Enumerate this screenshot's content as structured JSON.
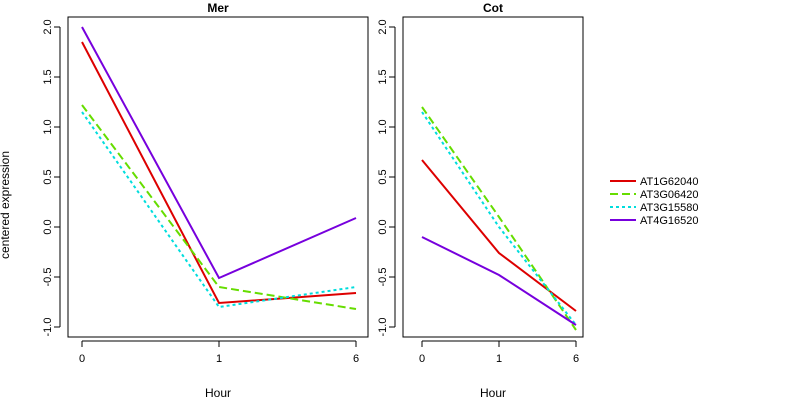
{
  "ylabel": "centered expression",
  "legend": {
    "placement": "right",
    "entries": [
      "AT1G62040",
      "AT3G06420",
      "AT3G15580",
      "AT4G16520"
    ]
  },
  "chart_data": [
    {
      "type": "line",
      "title": "Mer",
      "xlabel": "Hour",
      "ylabel": "centered expression",
      "x": [
        "0",
        "1",
        "6"
      ],
      "ylim": [
        -1.1,
        2.1
      ],
      "yticks": [
        "-1.0",
        "-0.5",
        "0.0",
        "0.5",
        "1.0",
        "1.5",
        "2.0"
      ],
      "series": [
        {
          "name": "AT1G62040",
          "color": "#dd0000",
          "dash": "solid",
          "values": [
            1.85,
            -0.76,
            -0.66
          ]
        },
        {
          "name": "AT3G06420",
          "color": "#66dd00",
          "dash": "long-dash",
          "values": [
            1.22,
            -0.6,
            -0.82
          ]
        },
        {
          "name": "AT3G15580",
          "color": "#00dddd",
          "dash": "dotted",
          "values": [
            1.15,
            -0.8,
            -0.6
          ]
        },
        {
          "name": "AT4G16520",
          "color": "#7700dd",
          "dash": "solid",
          "values": [
            2.0,
            -0.51,
            0.09
          ]
        }
      ]
    },
    {
      "type": "line",
      "title": "Cot",
      "xlabel": "Hour",
      "ylabel": "",
      "x": [
        "0",
        "1",
        "6"
      ],
      "ylim": [
        -1.1,
        2.1
      ],
      "yticks": [
        "-1.0",
        "-0.5",
        "0.0",
        "0.5",
        "1.0",
        "1.5",
        "2.0"
      ],
      "series": [
        {
          "name": "AT1G62040",
          "color": "#dd0000",
          "dash": "solid",
          "values": [
            0.67,
            -0.26,
            -0.84
          ]
        },
        {
          "name": "AT3G06420",
          "color": "#66dd00",
          "dash": "long-dash",
          "values": [
            1.2,
            0.1,
            -1.03
          ]
        },
        {
          "name": "AT3G15580",
          "color": "#00dddd",
          "dash": "dotted",
          "values": [
            1.15,
            0.0,
            -0.98
          ]
        },
        {
          "name": "AT4G16520",
          "color": "#7700dd",
          "dash": "solid",
          "values": [
            -0.1,
            -0.48,
            -0.98
          ]
        }
      ]
    }
  ]
}
